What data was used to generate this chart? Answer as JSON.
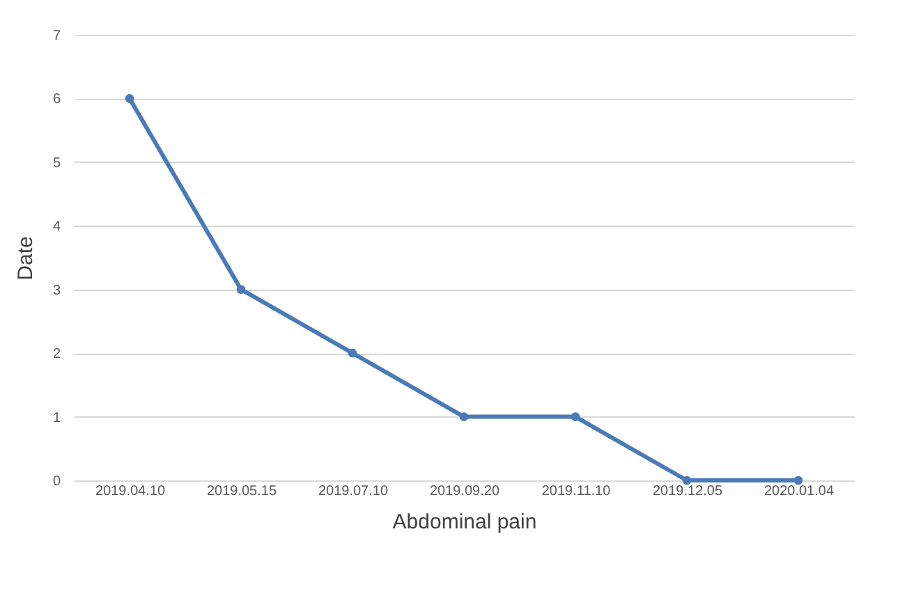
{
  "chart_data": {
    "type": "line",
    "xlabel": "Abdominal pain",
    "ylabel": "Date",
    "categories": [
      "2019.04.10",
      "2019.05.15",
      "2019.07.10",
      "2019.09.20",
      "2019.11.10",
      "2019.12.05",
      "2020.01.04"
    ],
    "series": [
      {
        "color": "#4a7ab8",
        "values": [
          6,
          3,
          2,
          1,
          1,
          0,
          0
        ]
      }
    ],
    "ylim": [
      0,
      7
    ],
    "yticks": [
      0,
      1,
      2,
      3,
      4,
      5,
      6,
      7
    ],
    "grid": "y",
    "marker": "circle",
    "line_style": "solid",
    "legend": false
  }
}
